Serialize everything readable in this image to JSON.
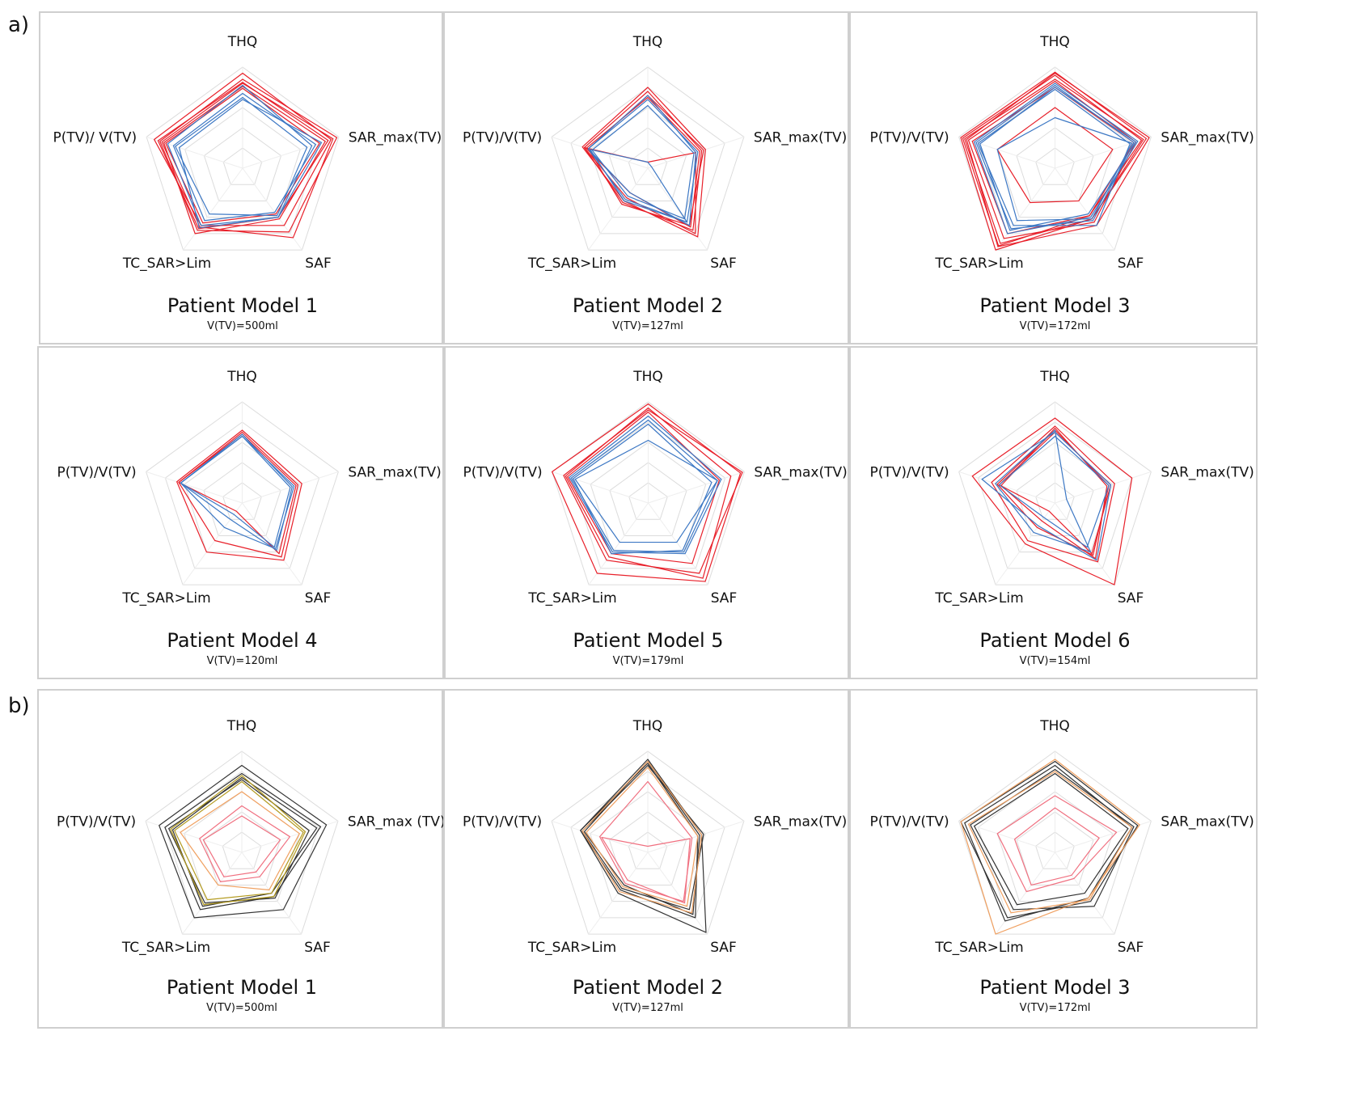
{
  "figure": {
    "section_labels": [
      "a)",
      "b)"
    ]
  },
  "colors": {
    "grid": "#dcdcdc",
    "red": "#e8202a",
    "blue": "#3d78c4",
    "dark": "#333333",
    "orange": "#f0a060",
    "olive": "#b39a1e",
    "pink": "#f07080"
  },
  "chart_data": [
    {
      "type": "radar",
      "section": "a)",
      "title": "Patient Model 1",
      "subtitle": "V(TV)=500ml",
      "axes": [
        "THQ",
        "SAR_max(TV)",
        "SAF",
        "TC_SAR>Lim",
        "P(TV)/ V(TV)"
      ],
      "series": [
        {
          "color": "red",
          "values": [
            0.94,
            0.92,
            0.7,
            0.7,
            0.92
          ]
        },
        {
          "color": "red",
          "values": [
            0.88,
            0.98,
            0.78,
            0.76,
            0.86
          ]
        },
        {
          "color": "red",
          "values": [
            0.84,
            0.94,
            0.85,
            0.72,
            0.84
          ]
        },
        {
          "color": "red",
          "values": [
            0.81,
            0.86,
            0.62,
            0.8,
            0.82
          ]
        },
        {
          "color": "red",
          "values": [
            0.79,
            0.8,
            0.56,
            0.67,
            0.8
          ]
        },
        {
          "color": "red",
          "values": [
            0.85,
            0.89,
            0.6,
            0.74,
            0.88
          ]
        },
        {
          "color": "blue",
          "values": [
            0.82,
            0.72,
            0.6,
            0.7,
            0.78
          ]
        },
        {
          "color": "blue",
          "values": [
            0.74,
            0.76,
            0.54,
            0.64,
            0.72
          ]
        },
        {
          "color": "blue",
          "values": [
            0.7,
            0.67,
            0.58,
            0.56,
            0.7
          ]
        },
        {
          "color": "blue",
          "values": [
            0.68,
            0.82,
            0.6,
            0.73,
            0.66
          ]
        }
      ]
    },
    {
      "type": "radar",
      "section": "a)",
      "title": "Patient Model 2",
      "subtitle": "V(TV)=127ml",
      "axes": [
        "THQ",
        "SAR_max(TV)",
        "SAF",
        "TC_SAR>Lim",
        "P(TV)/V(TV)"
      ],
      "series": [
        {
          "color": "red",
          "values": [
            0.8,
            0.6,
            0.84,
            0.4,
            0.68
          ]
        },
        {
          "color": "red",
          "values": [
            0.76,
            0.56,
            0.76,
            0.42,
            0.66
          ]
        },
        {
          "color": "red",
          "values": [
            0.72,
            0.58,
            0.7,
            0.44,
            0.62
          ]
        },
        {
          "color": "red",
          "values": [
            0.06,
            0.5,
            0.8,
            0.36,
            0.66
          ]
        },
        {
          "color": "red",
          "values": [
            0.7,
            0.54,
            0.72,
            0.3,
            0.64
          ]
        },
        {
          "color": "blue",
          "values": [
            0.68,
            0.52,
            0.66,
            0.38,
            0.62
          ]
        },
        {
          "color": "blue",
          "values": [
            0.62,
            0.48,
            0.62,
            0.34,
            0.58
          ]
        },
        {
          "color": "blue",
          "values": [
            0.06,
            0.04,
            0.66,
            0.4,
            0.6
          ]
        },
        {
          "color": "blue",
          "values": [
            0.72,
            0.5,
            0.7,
            0.3,
            0.62
          ]
        }
      ]
    },
    {
      "type": "radar",
      "section": "a)",
      "title": "Patient Model 3",
      "subtitle": "V(TV)=172ml",
      "axes": [
        "THQ",
        "SAR_max(TV)",
        "SAF",
        "TC_SAR>Lim",
        "P(TV)/V(TV)"
      ],
      "series": [
        {
          "color": "red",
          "values": [
            0.95,
            0.95,
            0.62,
            1.0,
            0.98
          ]
        },
        {
          "color": "red",
          "values": [
            0.92,
            0.9,
            0.58,
            0.95,
            0.96
          ]
        },
        {
          "color": "red",
          "values": [
            0.88,
            0.92,
            0.62,
            0.92,
            0.94
          ]
        },
        {
          "color": "red",
          "values": [
            0.86,
            0.84,
            0.66,
            0.86,
            0.9
          ]
        },
        {
          "color": "red",
          "values": [
            0.8,
            0.82,
            0.58,
            0.8,
            0.86
          ]
        },
        {
          "color": "red",
          "values": [
            0.6,
            0.6,
            0.4,
            0.42,
            0.6
          ]
        },
        {
          "color": "red",
          "values": [
            0.94,
            0.98,
            0.7,
            0.96,
            0.92
          ]
        },
        {
          "color": "blue",
          "values": [
            0.84,
            0.86,
            0.6,
            0.8,
            0.84
          ]
        },
        {
          "color": "blue",
          "values": [
            0.82,
            0.82,
            0.64,
            0.74,
            0.82
          ]
        },
        {
          "color": "blue",
          "values": [
            0.78,
            0.78,
            0.7,
            0.7,
            0.8
          ]
        },
        {
          "color": "blue",
          "values": [
            0.5,
            0.8,
            0.62,
            0.64,
            0.6
          ]
        },
        {
          "color": "blue",
          "values": [
            0.8,
            0.84,
            0.56,
            0.76,
            0.78
          ]
        }
      ]
    },
    {
      "type": "radar",
      "section": "a)",
      "title": "Patient Model 4",
      "subtitle": "V(TV)=120ml",
      "axes": [
        "THQ",
        "SAR_max(TV)",
        "SAF",
        "TC_SAR>Lim",
        "P(TV)/V(TV)"
      ],
      "series": [
        {
          "color": "red",
          "values": [
            0.72,
            0.62,
            0.7,
            0.6,
            0.68
          ]
        },
        {
          "color": "red",
          "values": [
            0.7,
            0.58,
            0.66,
            0.46,
            0.66
          ]
        },
        {
          "color": "red",
          "values": [
            0.68,
            0.56,
            0.62,
            0.1,
            0.66
          ]
        },
        {
          "color": "blue",
          "values": [
            0.68,
            0.52,
            0.58,
            0.2,
            0.64
          ]
        },
        {
          "color": "blue",
          "values": [
            0.66,
            0.5,
            0.54,
            0.14,
            0.64
          ]
        },
        {
          "color": "blue",
          "values": [
            0.66,
            0.54,
            0.56,
            0.3,
            0.64
          ]
        }
      ]
    },
    {
      "type": "radar",
      "section": "a)",
      "title": "Patient Model 5",
      "subtitle": "V(TV)=179ml",
      "axes": [
        "THQ",
        "SAR_max(TV)",
        "SAF",
        "TC_SAR>Lim",
        "P(TV)/V(TV)"
      ],
      "series": [
        {
          "color": "red",
          "values": [
            0.98,
            0.96,
            0.96,
            0.86,
            1.0
          ]
        },
        {
          "color": "red",
          "values": [
            0.92,
            0.98,
            0.86,
            0.7,
            0.88
          ]
        },
        {
          "color": "red",
          "values": [
            0.94,
            0.86,
            0.92,
            0.66,
            0.86
          ]
        },
        {
          "color": "red",
          "values": [
            0.9,
            0.74,
            0.74,
            0.62,
            0.84
          ]
        },
        {
          "color": "blue",
          "values": [
            0.86,
            0.76,
            0.62,
            0.6,
            0.82
          ]
        },
        {
          "color": "blue",
          "values": [
            0.82,
            0.72,
            0.6,
            0.58,
            0.8
          ]
        },
        {
          "color": "blue",
          "values": [
            0.78,
            0.66,
            0.58,
            0.62,
            0.78
          ]
        },
        {
          "color": "blue",
          "values": [
            0.62,
            0.72,
            0.48,
            0.48,
            0.76
          ]
        }
      ]
    },
    {
      "type": "radar",
      "section": "a)",
      "title": "Patient Model 6",
      "subtitle": "V(TV)=154ml",
      "axes": [
        "THQ",
        "SAR_max(TV)",
        "SAF",
        "TC_SAR>Lim",
        "P(TV)/V(TV)"
      ],
      "series": [
        {
          "color": "red",
          "values": [
            0.84,
            0.8,
            1.0,
            0.5,
            0.86
          ]
        },
        {
          "color": "red",
          "values": [
            0.76,
            0.62,
            0.72,
            0.46,
            0.66
          ]
        },
        {
          "color": "red",
          "values": [
            0.72,
            0.56,
            0.64,
            0.3,
            0.6
          ]
        },
        {
          "color": "red",
          "values": [
            0.7,
            0.58,
            0.62,
            0.1,
            0.58
          ]
        },
        {
          "color": "red",
          "values": [
            0.74,
            0.54,
            0.68,
            0.22,
            0.56
          ]
        },
        {
          "color": "blue",
          "values": [
            0.7,
            0.58,
            0.7,
            0.28,
            0.76
          ]
        },
        {
          "color": "blue",
          "values": [
            0.72,
            0.12,
            0.6,
            0.36,
            0.62
          ]
        },
        {
          "color": "blue",
          "values": [
            0.66,
            0.56,
            0.54,
            0.18,
            0.58
          ]
        }
      ]
    },
    {
      "type": "radar",
      "section": "b)",
      "title": "Patient Model 1",
      "subtitle": "V(TV)=500ml",
      "axes": [
        "THQ",
        "SAR_max (TV)",
        "SAF",
        "TC_SAR>Lim",
        "P(TV)/V(TV)"
      ],
      "series": [
        {
          "color": "dark",
          "values": [
            0.86,
            0.88,
            0.7,
            0.8,
            0.86
          ]
        },
        {
          "color": "dark",
          "values": [
            0.78,
            0.82,
            0.54,
            0.7,
            0.8
          ]
        },
        {
          "color": "dark",
          "values": [
            0.72,
            0.7,
            0.56,
            0.62,
            0.76
          ]
        },
        {
          "color": "dark",
          "values": [
            0.74,
            0.78,
            0.5,
            0.66,
            0.72
          ]
        },
        {
          "color": "olive",
          "values": [
            0.76,
            0.66,
            0.54,
            0.64,
            0.74
          ]
        },
        {
          "color": "olive",
          "values": [
            0.7,
            0.64,
            0.5,
            0.58,
            0.7
          ]
        },
        {
          "color": "orange",
          "values": [
            0.6,
            0.6,
            0.46,
            0.4,
            0.64
          ]
        },
        {
          "color": "pink",
          "values": [
            0.46,
            0.5,
            0.3,
            0.36,
            0.44
          ]
        },
        {
          "color": "pink",
          "values": [
            0.36,
            0.4,
            0.24,
            0.3,
            0.4
          ]
        }
      ]
    },
    {
      "type": "radar",
      "section": "b)",
      "title": "Patient Model 2",
      "subtitle": "V(TV)=127ml",
      "axes": [
        "THQ",
        "SAR_max(TV)",
        "SAF",
        "TC_SAR>Lim",
        "P(TV)/V(TV)"
      ],
      "series": [
        {
          "color": "dark",
          "values": [
            0.92,
            0.56,
            0.98,
            0.5,
            0.7
          ]
        },
        {
          "color": "dark",
          "values": [
            0.88,
            0.52,
            0.8,
            0.46,
            0.7
          ]
        },
        {
          "color": "dark",
          "values": [
            0.86,
            0.58,
            0.7,
            0.44,
            0.68
          ]
        },
        {
          "color": "dark",
          "values": [
            0.9,
            0.54,
            0.76,
            0.4,
            0.66
          ]
        },
        {
          "color": "orange",
          "values": [
            0.9,
            0.56,
            0.74,
            0.48,
            0.68
          ]
        },
        {
          "color": "orange",
          "values": [
            0.84,
            0.52,
            0.66,
            0.42,
            0.64
          ]
        },
        {
          "color": "pink",
          "values": [
            0.7,
            0.46,
            0.6,
            0.38,
            0.5
          ]
        },
        {
          "color": "pink",
          "values": [
            0.06,
            0.44,
            0.62,
            0.34,
            0.48
          ]
        }
      ]
    },
    {
      "type": "radar",
      "section": "b)",
      "title": "Patient Model 3",
      "subtitle": "V(TV)=172ml",
      "axes": [
        "THQ",
        "SAR_max(TV)",
        "SAF",
        "TC_SAR>Lim",
        "P(TV)/V(TV)"
      ],
      "series": [
        {
          "color": "dark",
          "values": [
            0.9,
            0.86,
            0.6,
            0.8,
            0.98
          ]
        },
        {
          "color": "dark",
          "values": [
            0.86,
            0.8,
            0.56,
            0.84,
            0.94
          ]
        },
        {
          "color": "dark",
          "values": [
            0.82,
            0.82,
            0.66,
            0.7,
            0.88
          ]
        },
        {
          "color": "dark",
          "values": [
            0.78,
            0.76,
            0.5,
            0.64,
            0.84
          ]
        },
        {
          "color": "orange",
          "values": [
            0.92,
            0.88,
            0.56,
            1.0,
            0.98
          ]
        },
        {
          "color": "orange",
          "values": [
            0.8,
            0.8,
            0.58,
            0.74,
            0.9
          ]
        },
        {
          "color": "pink",
          "values": [
            0.56,
            0.64,
            0.32,
            0.48,
            0.6
          ]
        },
        {
          "color": "pink",
          "values": [
            0.44,
            0.46,
            0.28,
            0.4,
            0.42
          ]
        }
      ]
    }
  ]
}
